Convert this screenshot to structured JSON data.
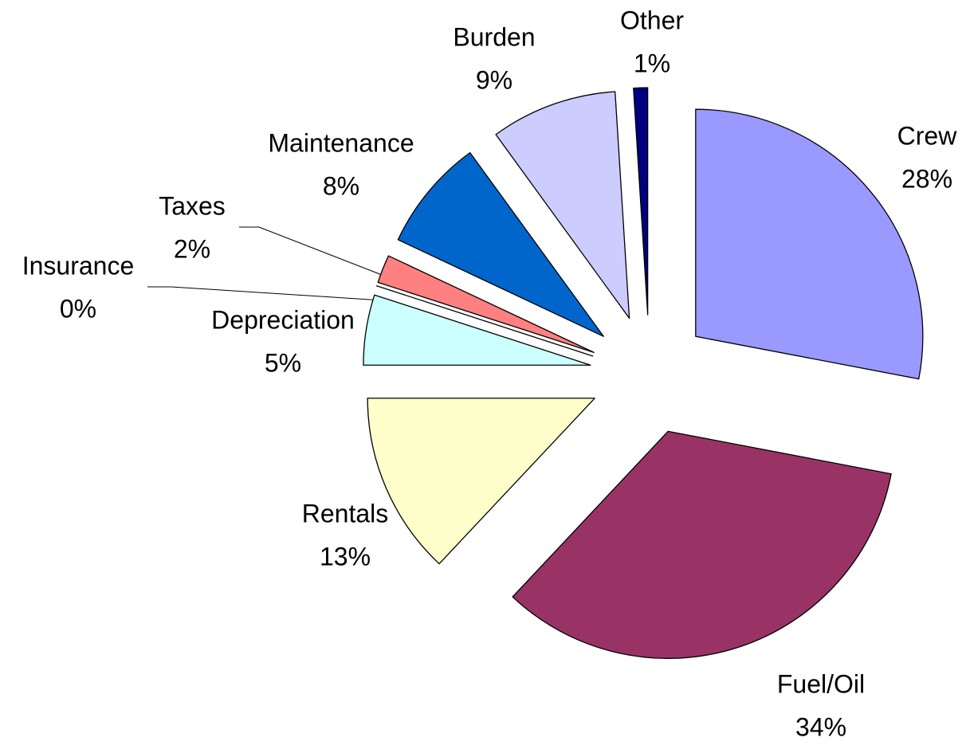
{
  "chart_data": {
    "type": "pie",
    "categories": [
      "Crew",
      "Fuel/Oil",
      "Rentals",
      "Depreciation",
      "Insurance",
      "Taxes",
      "Maintenance",
      "Burden",
      "Other"
    ],
    "values": [
      28,
      34,
      13,
      5,
      0,
      2,
      8,
      9,
      1
    ],
    "value_labels": [
      "28%",
      "34%",
      "13%",
      "5%",
      "0%",
      "2%",
      "8%",
      "9%",
      "1%"
    ],
    "colors": [
      "#9999ff",
      "#993366",
      "#ffffcc",
      "#ccffff",
      "#660066",
      "#ff8080",
      "#0066cc",
      "#ccccff",
      "#000080"
    ]
  }
}
